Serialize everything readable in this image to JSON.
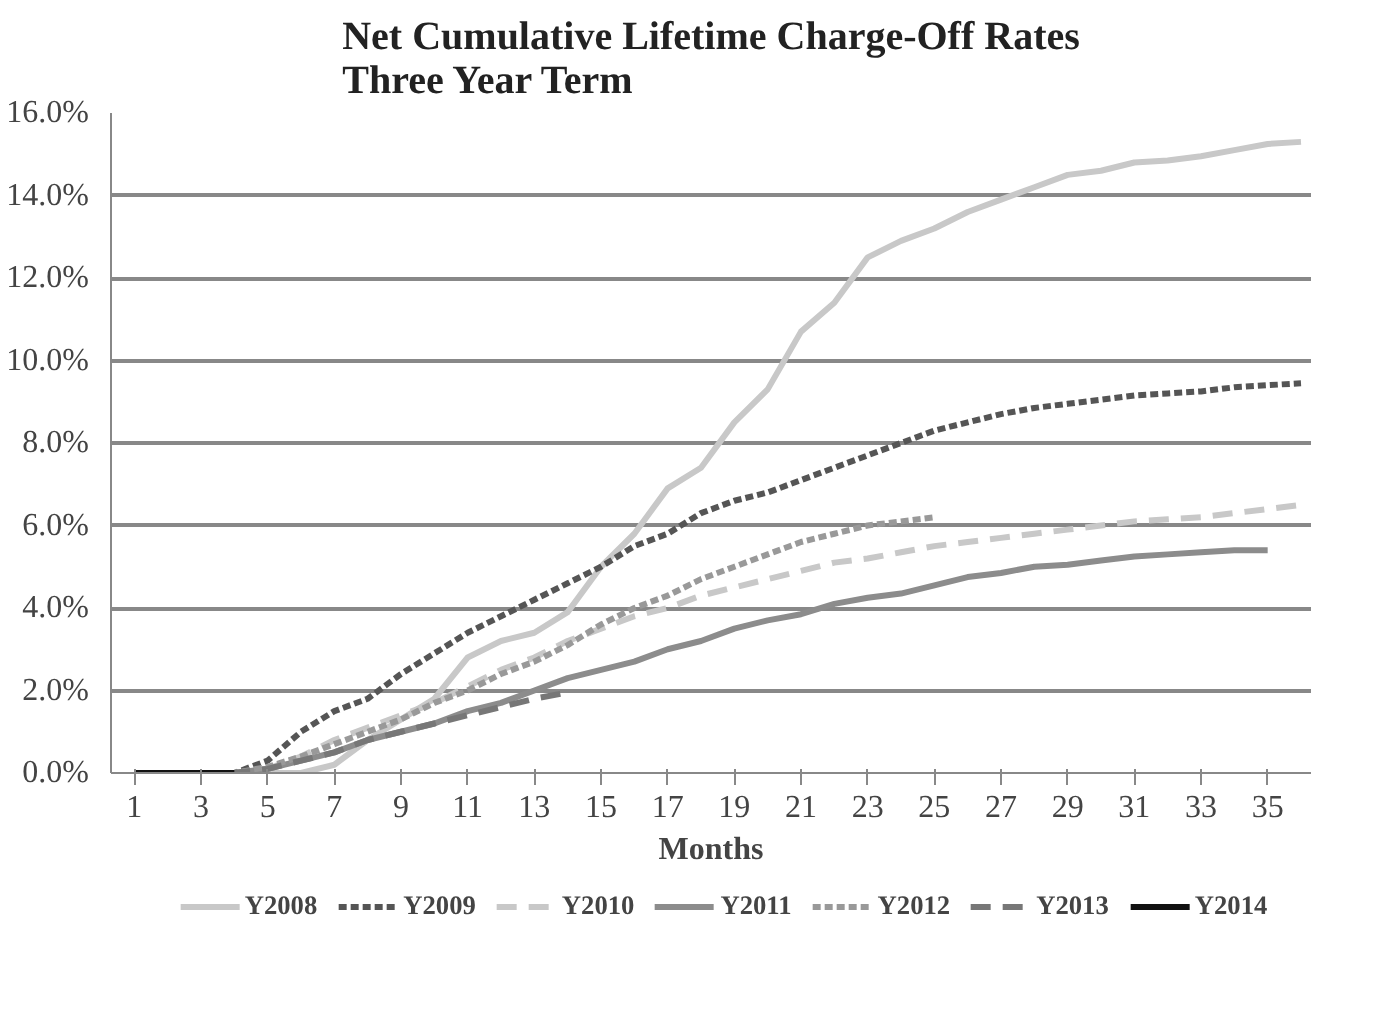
{
  "chart_data": {
    "type": "line",
    "title": "Net Cumulative Lifetime Charge-Off Rates\nThree Year Term",
    "xlabel": "Months",
    "xlim": [
      0.3,
      36.3
    ],
    "xticks": [
      1,
      3,
      5,
      7,
      9,
      11,
      13,
      15,
      17,
      19,
      21,
      23,
      25,
      27,
      29,
      31,
      33,
      35
    ],
    "ylim": [
      0,
      16
    ],
    "yticks": [
      {
        "value": 0,
        "label": "0.0%"
      },
      {
        "value": 2,
        "label": "2.0%"
      },
      {
        "value": 4,
        "label": "4.0%"
      },
      {
        "value": 6,
        "label": "6.0%"
      },
      {
        "value": 8,
        "label": "8.0%"
      },
      {
        "value": 10,
        "label": "10.0%"
      },
      {
        "value": 12,
        "label": "12.0%"
      },
      {
        "value": 14,
        "label": "14.0%"
      },
      {
        "value": 16,
        "label": "16.0%"
      }
    ],
    "grid": "y",
    "legend": "bottom",
    "marker": "none",
    "series": [
      {
        "name": "Y2008",
        "color": "#c8c8c8",
        "line_style": "solid",
        "x": [
          1,
          2,
          3,
          4,
          5,
          6,
          7,
          8,
          9,
          10,
          11,
          12,
          13,
          14,
          15,
          16,
          17,
          18,
          19,
          20,
          21,
          22,
          23,
          24,
          25,
          26,
          27,
          28,
          29,
          30,
          31,
          32,
          33,
          34,
          35,
          36
        ],
        "values": [
          0,
          0,
          0,
          0,
          0,
          0,
          0.2,
          0.8,
          1.3,
          1.8,
          2.8,
          3.2,
          3.4,
          3.9,
          5.0,
          5.8,
          6.9,
          7.4,
          8.5,
          9.3,
          10.7,
          11.4,
          12.5,
          12.9,
          13.2,
          13.6,
          13.9,
          14.2,
          14.5,
          14.6,
          14.8,
          14.85,
          14.95,
          15.1,
          15.25,
          15.3
        ]
      },
      {
        "name": "Y2009",
        "color": "#555555",
        "line_style": "dotted",
        "x": [
          1,
          2,
          3,
          4,
          5,
          6,
          7,
          8,
          9,
          10,
          11,
          12,
          13,
          14,
          15,
          16,
          17,
          18,
          19,
          20,
          21,
          22,
          23,
          24,
          25,
          26,
          27,
          28,
          29,
          30,
          31,
          32,
          33,
          34,
          35,
          36
        ],
        "values": [
          0,
          0,
          0,
          0,
          0.3,
          1.0,
          1.5,
          1.8,
          2.4,
          2.9,
          3.4,
          3.8,
          4.2,
          4.6,
          5.0,
          5.5,
          5.8,
          6.3,
          6.6,
          6.8,
          7.1,
          7.4,
          7.7,
          8.0,
          8.3,
          8.5,
          8.7,
          8.85,
          8.95,
          9.05,
          9.15,
          9.2,
          9.25,
          9.35,
          9.4,
          9.45
        ]
      },
      {
        "name": "Y2010",
        "color": "#c8c8c8",
        "line_style": "dashed",
        "x": [
          1,
          2,
          3,
          4,
          5,
          6,
          7,
          8,
          9,
          10,
          11,
          12,
          13,
          14,
          15,
          16,
          17,
          18,
          19,
          20,
          21,
          22,
          23,
          24,
          25,
          26,
          27,
          28,
          29,
          30,
          31,
          32,
          33,
          34,
          35,
          36
        ],
        "values": [
          0,
          0,
          0,
          0,
          0.1,
          0.4,
          0.8,
          1.1,
          1.4,
          1.7,
          2.1,
          2.5,
          2.8,
          3.2,
          3.5,
          3.8,
          4.0,
          4.3,
          4.5,
          4.7,
          4.9,
          5.1,
          5.2,
          5.35,
          5.5,
          5.6,
          5.7,
          5.8,
          5.9,
          6.0,
          6.1,
          6.15,
          6.2,
          6.3,
          6.4,
          6.5
        ]
      },
      {
        "name": "Y2011",
        "color": "#8c8c8c",
        "line_style": "solid",
        "x": [
          1,
          2,
          3,
          4,
          5,
          6,
          7,
          8,
          9,
          10,
          11,
          12,
          13,
          14,
          15,
          16,
          17,
          18,
          19,
          20,
          21,
          22,
          23,
          24,
          25,
          26,
          27,
          28,
          29,
          30,
          31,
          32,
          33,
          34,
          35
        ],
        "values": [
          0,
          0,
          0,
          0,
          0.1,
          0.3,
          0.5,
          0.8,
          1.0,
          1.2,
          1.5,
          1.7,
          2.0,
          2.3,
          2.5,
          2.7,
          3.0,
          3.2,
          3.5,
          3.7,
          3.85,
          4.1,
          4.25,
          4.35,
          4.55,
          4.75,
          4.85,
          5.0,
          5.05,
          5.15,
          5.25,
          5.3,
          5.35,
          5.4,
          5.4
        ]
      },
      {
        "name": "Y2012",
        "color": "#999999",
        "line_style": "dotted",
        "x": [
          1,
          2,
          3,
          4,
          5,
          6,
          7,
          8,
          9,
          10,
          11,
          12,
          13,
          14,
          15,
          16,
          17,
          18,
          19,
          20,
          21,
          22,
          23,
          24,
          25
        ],
        "values": [
          0,
          0,
          0,
          0,
          0.15,
          0.4,
          0.7,
          1.0,
          1.3,
          1.7,
          2.0,
          2.4,
          2.7,
          3.1,
          3.6,
          4.0,
          4.3,
          4.7,
          5.0,
          5.3,
          5.6,
          5.8,
          6.0,
          6.1,
          6.2
        ]
      },
      {
        "name": "Y2013",
        "color": "#777777",
        "line_style": "dashed",
        "x": [
          1,
          2,
          3,
          4,
          5,
          6,
          7,
          8,
          9,
          10,
          11,
          12,
          13,
          14
        ],
        "values": [
          0,
          0,
          0,
          0,
          0.1,
          0.3,
          0.5,
          0.8,
          1.0,
          1.2,
          1.4,
          1.6,
          1.8,
          1.95
        ]
      },
      {
        "name": "Y2014",
        "color": "#111111",
        "line_style": "solid",
        "x": [
          1,
          2,
          3,
          4
        ],
        "values": [
          0,
          0,
          0,
          0
        ]
      }
    ]
  }
}
